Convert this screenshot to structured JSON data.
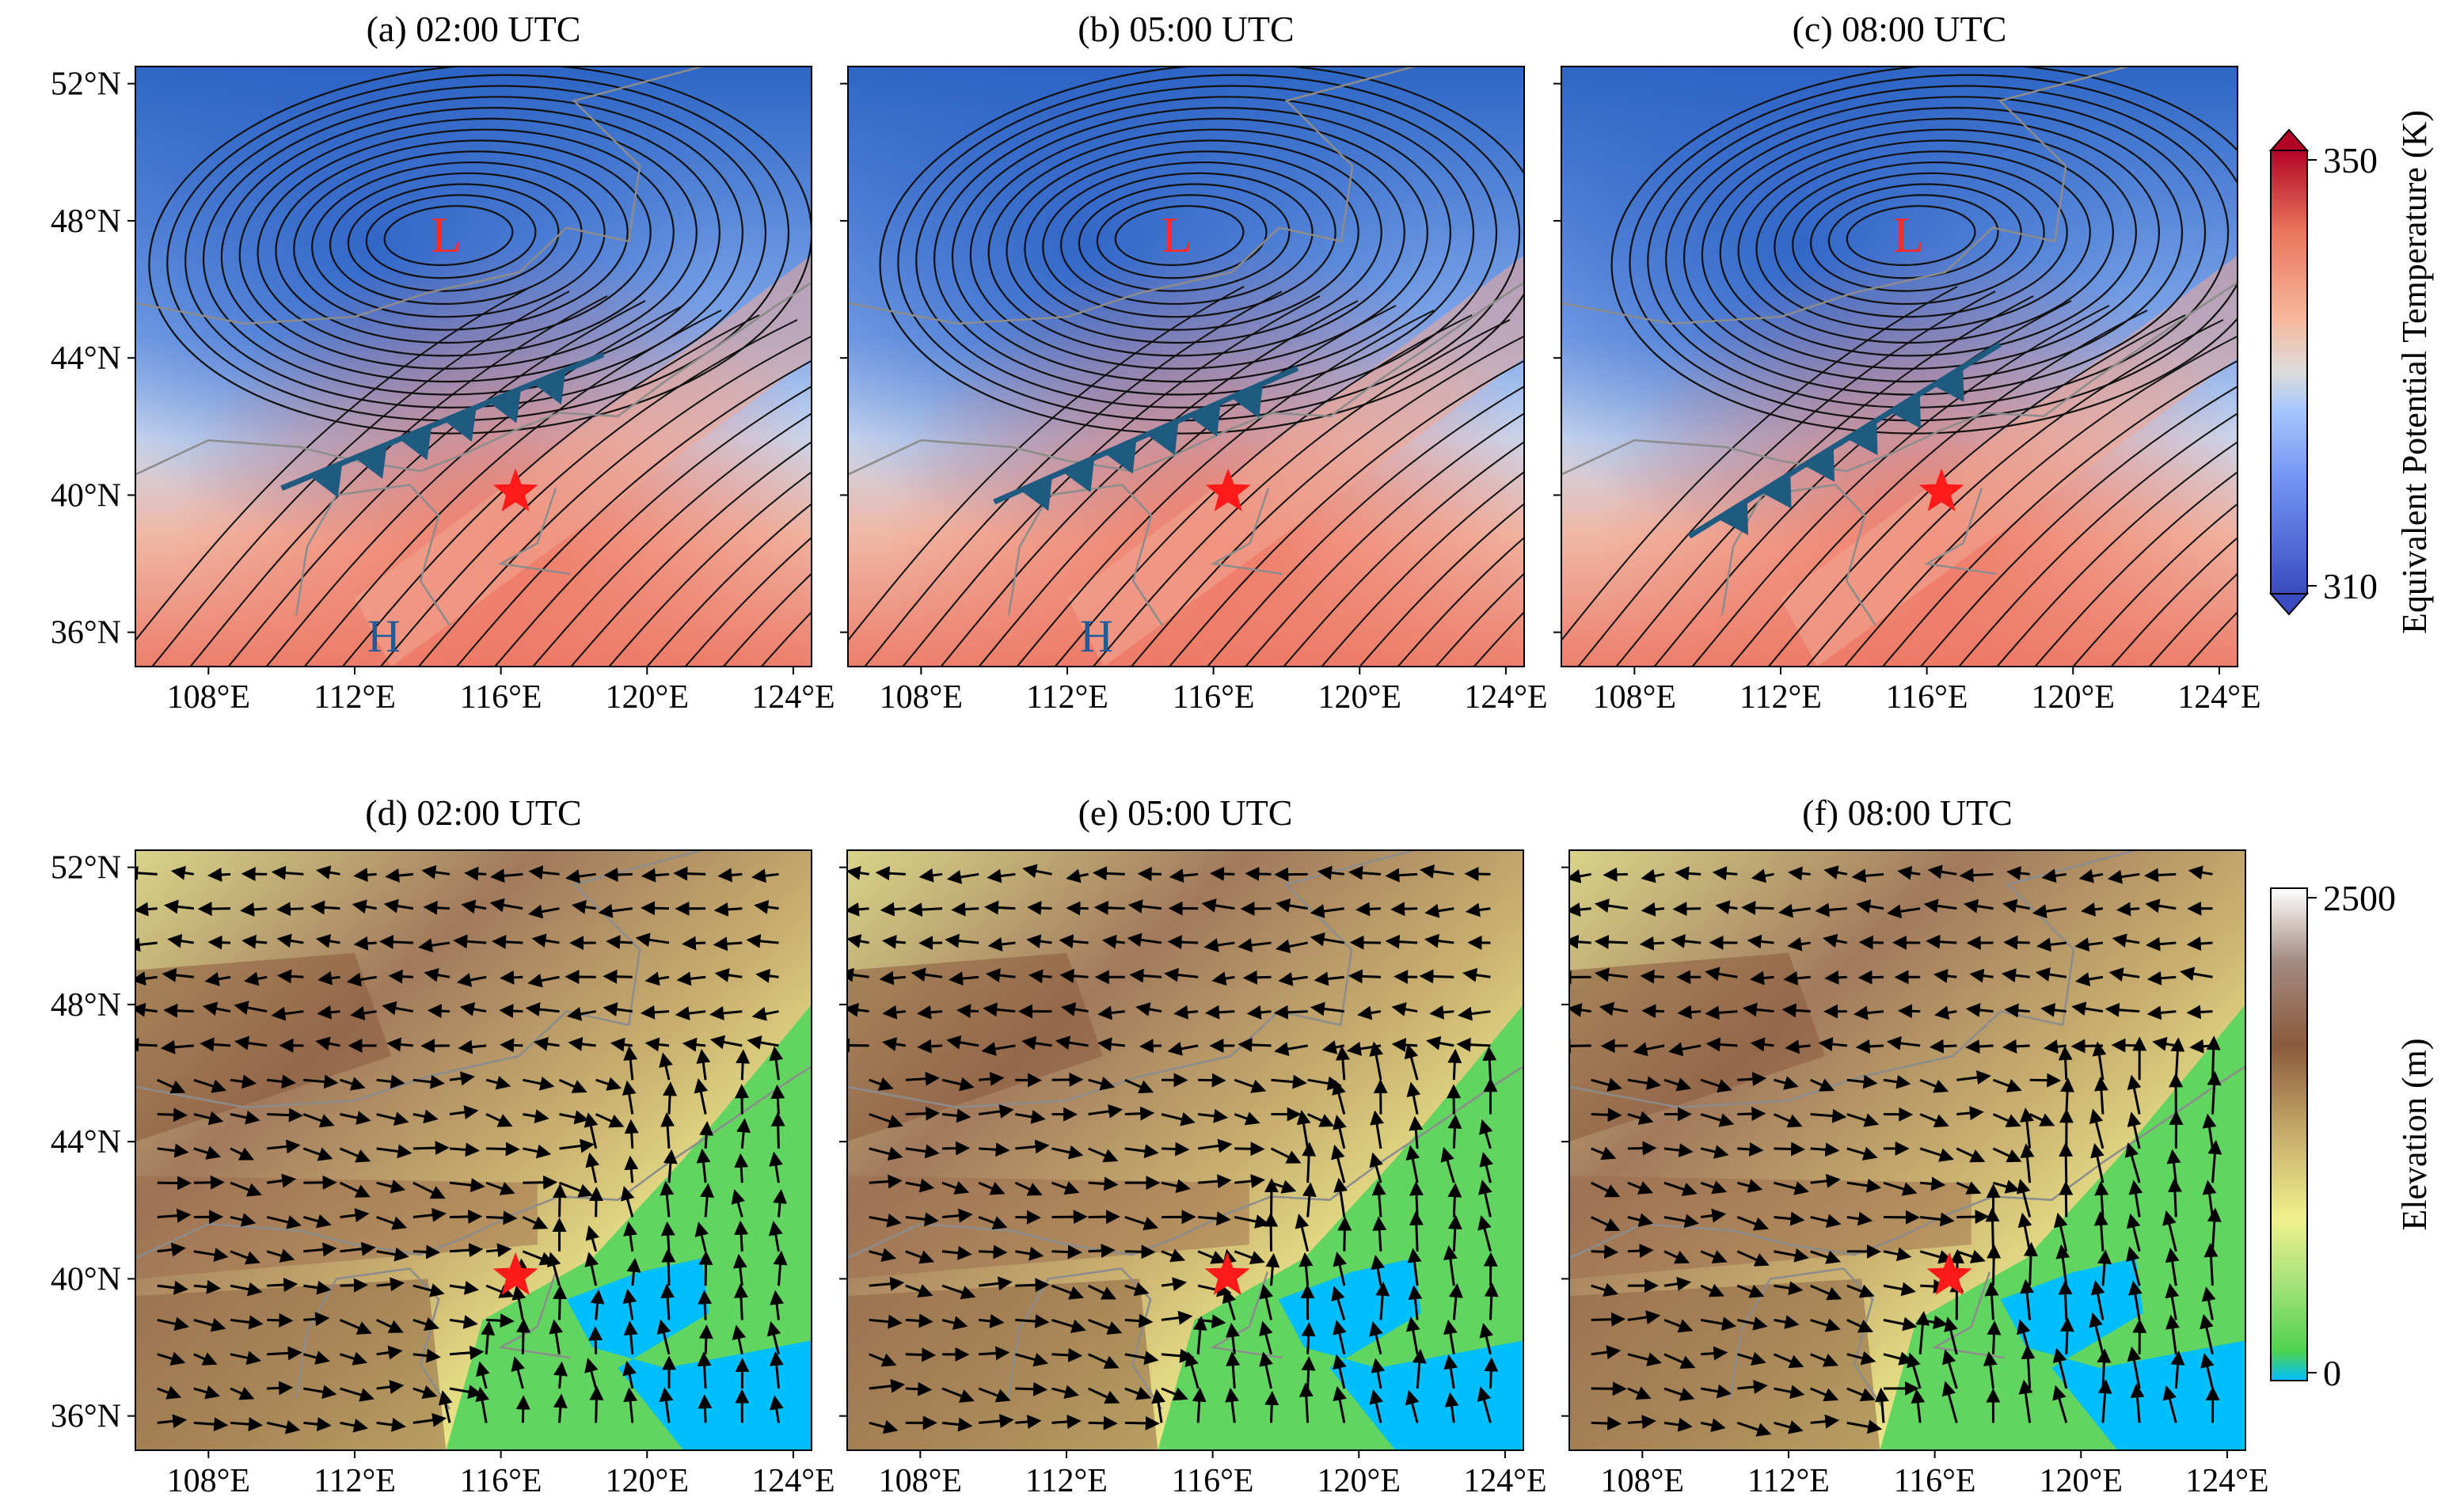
{
  "panels_top": [
    {
      "id": "a",
      "title": "(a) 02:00 UTC",
      "low_label": "L",
      "high_label": "H"
    },
    {
      "id": "b",
      "title": "(b) 05:00 UTC",
      "low_label": "L",
      "high_label": "H"
    },
    {
      "id": "c",
      "title": "(c) 08:00 UTC",
      "low_label": "L",
      "high_label": ""
    }
  ],
  "panels_bottom": [
    {
      "id": "d",
      "title": "(d) 02:00 UTC"
    },
    {
      "id": "e",
      "title": "(e) 05:00 UTC"
    },
    {
      "id": "f",
      "title": "(f) 08:00 UTC"
    }
  ],
  "axes": {
    "lon_ticks": [
      "108°E",
      "112°E",
      "116°E",
      "120°E",
      "124°E"
    ],
    "lat_ticks_top": [
      "52°N",
      "48°N",
      "44°N",
      "40°N",
      "36°N"
    ],
    "lat_ticks_bottom": [
      "52°N",
      "48°N",
      "44°N",
      "40°N",
      "36°N"
    ]
  },
  "colorbar_top": {
    "label": "Equivalent Potential Temperature (K)",
    "max_label": "350",
    "min_label": "310",
    "colors": [
      "#3b4cc0",
      "#6f92f3",
      "#aac7fd",
      "#dddcdc",
      "#f7b89c",
      "#e7745b",
      "#b40426"
    ]
  },
  "colorbar_bottom": {
    "label": "Elevation (m)",
    "max_label": "2500",
    "min_label": "0",
    "colors": [
      "#00bfff",
      "#4ed24e",
      "#a7e27a",
      "#f1f08d",
      "#c7ad6b",
      "#8b5a3c",
      "#a38a80",
      "#ffffff"
    ]
  },
  "marker": {
    "name": "target-location",
    "color": "#ff1a1a",
    "lon": 116.4,
    "lat": 39.9
  },
  "front_color": "#1f5a80",
  "low_color": "#ff2a2a",
  "high_color": "#1f5a9a"
}
